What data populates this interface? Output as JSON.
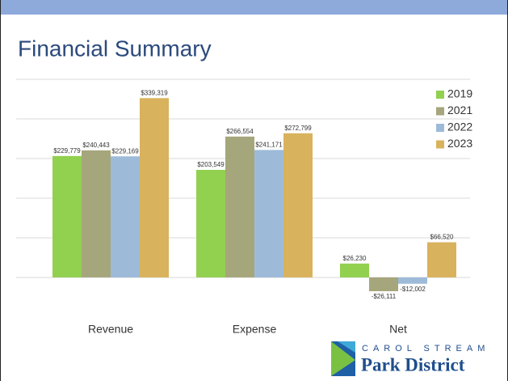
{
  "chart_data": {
    "type": "bar",
    "title": "Financial Summary",
    "categories": [
      "Revenue",
      "Expense",
      "Net"
    ],
    "series": [
      {
        "name": "2019",
        "color": "#92d050",
        "values": [
          229779,
          203549,
          26230
        ],
        "value_labels": [
          "$229,779",
          "$203,549",
          "$26,230"
        ]
      },
      {
        "name": "2021",
        "color": "#a6a67c",
        "values": [
          240443,
          266554,
          -26111
        ],
        "value_labels": [
          "$240,443",
          "$266,554",
          "-$26,111"
        ]
      },
      {
        "name": "2022",
        "color": "#9dbbd9",
        "values": [
          229169,
          241171,
          -12002
        ],
        "value_labels": [
          "$229,169",
          "$241,171",
          "-$12,002"
        ]
      },
      {
        "name": "2023",
        "color": "#d9b25d",
        "values": [
          339319,
          272799,
          66520
        ],
        "value_labels": [
          "$339,319",
          "$272,799",
          "$66,520"
        ]
      }
    ],
    "ylim": [
      -50000,
      375000
    ],
    "yticks": [
      0,
      75000,
      150000,
      225000,
      300000,
      375000
    ],
    "grid": true,
    "legend": "top-right"
  },
  "logo": {
    "line1": "CAROL STREAM",
    "line2": "Park District"
  }
}
